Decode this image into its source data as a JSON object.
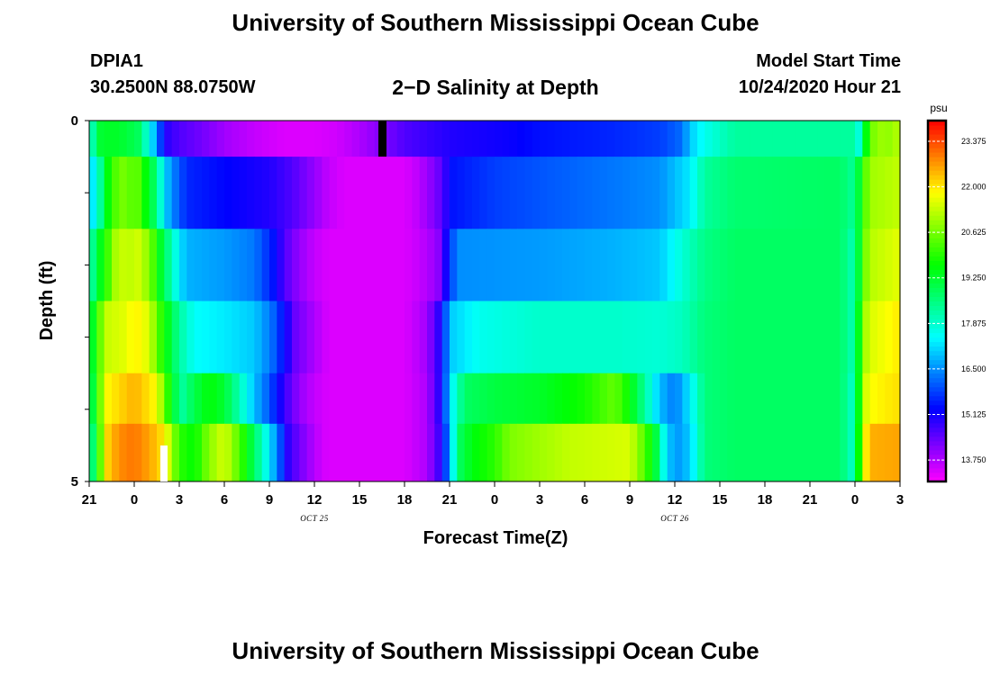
{
  "header": {
    "title": "University of Southern Mississippi Ocean Cube",
    "station_id": "DPIA1",
    "station_coords": "30.2500N 88.0750W",
    "plot_title": "2−D Salinity at Depth",
    "model_label": "Model Start Time",
    "model_time": "10/24/2020 Hour 21"
  },
  "footer": {
    "title": "University of Southern Mississippi Ocean Cube"
  },
  "chart_data": {
    "type": "heatmap",
    "title": "2−D Salinity at Depth",
    "xlabel": "Forecast Time(Z)",
    "ylabel": "Depth (ft)",
    "x_tick_labels": [
      "21",
      "0",
      "3",
      "6",
      "9",
      "12",
      "15",
      "18",
      "21",
      "0",
      "3",
      "6",
      "9",
      "12",
      "15",
      "18",
      "21",
      "0",
      "3"
    ],
    "date_labels": [
      {
        "label": "OCT 25",
        "tick_index": 5
      },
      {
        "label": "OCT 26",
        "tick_index": 13
      }
    ],
    "y_tick_labels": [
      "0",
      "5"
    ],
    "ylim": [
      0,
      5
    ],
    "x_hours_range": [
      0,
      54
    ],
    "colorbar": {
      "unit": "psu",
      "min": 13.1,
      "max": 24.0,
      "tick_values": [
        13.75,
        15.125,
        16.5,
        17.875,
        19.25,
        20.625,
        22.0,
        23.375
      ],
      "tick_labels": [
        "13.750",
        "15.125",
        "16.500",
        "17.875",
        "19.250",
        "20.625",
        "22.000",
        "23.375"
      ]
    },
    "rows": [
      {
        "top": 0,
        "bottom": 0.5,
        "knots": [
          [
            0,
            17.6
          ],
          [
            0.5,
            18.8
          ],
          [
            1,
            19.6
          ],
          [
            1.5,
            19.0
          ],
          [
            2,
            19.6
          ],
          [
            2.5,
            18.8
          ],
          [
            3,
            19.3
          ],
          [
            4,
            17.6
          ],
          [
            4.6,
            16.3
          ],
          [
            5,
            15.0
          ],
          [
            6,
            14.6
          ],
          [
            7.5,
            14.3
          ],
          [
            9,
            13.9
          ],
          [
            11,
            13.6
          ],
          [
            13,
            13.4
          ],
          [
            15,
            13.4
          ],
          [
            16.5,
            13.5
          ],
          [
            18,
            13.8
          ],
          [
            20,
            14.3
          ],
          [
            21,
            14.6
          ],
          [
            24,
            15.0
          ],
          [
            26,
            15.1
          ],
          [
            28,
            15.2
          ],
          [
            30,
            15.4
          ],
          [
            35,
            15.6
          ],
          [
            38,
            15.8
          ],
          [
            39.5,
            16.2
          ],
          [
            40,
            17.0
          ],
          [
            41,
            17.6
          ],
          [
            43,
            18.3
          ],
          [
            51,
            18.3
          ],
          [
            51.2,
            17.6
          ],
          [
            51.6,
            19.1
          ],
          [
            52,
            20.3
          ],
          [
            52.5,
            21.1
          ],
          [
            53,
            20.8
          ],
          [
            54,
            21.2
          ]
        ]
      },
      {
        "top": 0.5,
        "bottom": 1.5,
        "knots": [
          [
            0,
            17.0
          ],
          [
            0.6,
            17.8
          ],
          [
            1,
            19.2
          ],
          [
            1.6,
            20.1
          ],
          [
            2.1,
            20.8
          ],
          [
            2.6,
            20.2
          ],
          [
            3,
            20.8
          ],
          [
            3.6,
            19.8
          ],
          [
            4.5,
            18.6
          ],
          [
            5,
            17.1
          ],
          [
            5.8,
            16.2
          ],
          [
            6.5,
            15.6
          ],
          [
            9,
            15.3
          ],
          [
            12,
            15.0
          ],
          [
            13.5,
            14.6
          ],
          [
            15,
            14.0
          ],
          [
            16,
            13.6
          ],
          [
            17,
            13.4
          ],
          [
            21,
            13.4
          ],
          [
            22,
            13.7
          ],
          [
            23,
            14.2
          ],
          [
            23.6,
            14.6
          ],
          [
            24,
            15.4
          ],
          [
            27,
            15.8
          ],
          [
            30,
            16.0
          ],
          [
            35,
            16.3
          ],
          [
            38,
            16.5
          ],
          [
            40,
            17.3
          ],
          [
            41,
            18.3
          ],
          [
            43,
            18.7
          ],
          [
            50,
            18.8
          ],
          [
            51,
            18.3
          ],
          [
            51.5,
            20.0
          ],
          [
            52,
            21.0
          ],
          [
            54,
            21.3
          ]
        ]
      },
      {
        "top": 1.5,
        "bottom": 2.5,
        "knots": [
          [
            0,
            17.9
          ],
          [
            0.6,
            19.2
          ],
          [
            1.2,
            20.1
          ],
          [
            2,
            21.5
          ],
          [
            2.6,
            21.1
          ],
          [
            3,
            21.6
          ],
          [
            4,
            20.8
          ],
          [
            4.7,
            19.4
          ],
          [
            5.3,
            18.4
          ],
          [
            6,
            17.3
          ],
          [
            6.5,
            16.8
          ],
          [
            9,
            16.6
          ],
          [
            11,
            16.3
          ],
          [
            12.3,
            15.4
          ],
          [
            13,
            14.6
          ],
          [
            14,
            14.0
          ],
          [
            15,
            13.6
          ],
          [
            16,
            13.4
          ],
          [
            21,
            13.4
          ],
          [
            22,
            13.6
          ],
          [
            23.2,
            14.0
          ],
          [
            24,
            15.6
          ],
          [
            24.5,
            16.5
          ],
          [
            30,
            16.6
          ],
          [
            35,
            16.8
          ],
          [
            38,
            17.0
          ],
          [
            39.5,
            17.8
          ],
          [
            41,
            18.5
          ],
          [
            43,
            18.8
          ],
          [
            50,
            18.8
          ],
          [
            51,
            18.0
          ],
          [
            51.5,
            20.3
          ],
          [
            52,
            21.2
          ],
          [
            54,
            21.6
          ]
        ]
      },
      {
        "top": 2.5,
        "bottom": 3.5,
        "knots": [
          [
            0,
            18.8
          ],
          [
            0.6,
            20.1
          ],
          [
            1,
            21.3
          ],
          [
            2.5,
            21.6
          ],
          [
            3,
            22.0
          ],
          [
            4,
            21.5
          ],
          [
            4.6,
            20.3
          ],
          [
            5.3,
            19.3
          ],
          [
            6,
            18.3
          ],
          [
            7,
            17.5
          ],
          [
            9,
            17.3
          ],
          [
            11,
            17.0
          ],
          [
            12.2,
            16.2
          ],
          [
            13,
            15.3
          ],
          [
            13.7,
            14.4
          ],
          [
            15,
            13.8
          ],
          [
            16,
            13.4
          ],
          [
            21,
            13.4
          ],
          [
            22.5,
            13.9
          ],
          [
            23.5,
            15.2
          ],
          [
            24,
            17.0
          ],
          [
            26,
            17.6
          ],
          [
            30,
            17.9
          ],
          [
            35,
            17.9
          ],
          [
            38,
            17.8
          ],
          [
            39.5,
            18.0
          ],
          [
            41,
            18.6
          ],
          [
            43,
            18.8
          ],
          [
            50,
            18.8
          ],
          [
            51,
            18.0
          ],
          [
            51.5,
            20.8
          ],
          [
            52,
            21.5
          ],
          [
            54,
            22.0
          ]
        ]
      },
      {
        "top": 3.5,
        "bottom": 4.2,
        "knots": [
          [
            0,
            18.5
          ],
          [
            0.6,
            20.0
          ],
          [
            1,
            21.8
          ],
          [
            3,
            22.5
          ],
          [
            4.5,
            21.8
          ],
          [
            5,
            20.5
          ],
          [
            5.6,
            19.2
          ],
          [
            6.2,
            18.3
          ],
          [
            7,
            19.0
          ],
          [
            8,
            19.6
          ],
          [
            9,
            19.2
          ],
          [
            10,
            18.1
          ],
          [
            11,
            16.9
          ],
          [
            12,
            16.0
          ],
          [
            13,
            14.8
          ],
          [
            14,
            14.0
          ],
          [
            15,
            13.6
          ],
          [
            16,
            13.4
          ],
          [
            21,
            13.4
          ],
          [
            22.5,
            13.8
          ],
          [
            23.5,
            15.2
          ],
          [
            24,
            17.2
          ],
          [
            25,
            18.8
          ],
          [
            27,
            19.1
          ],
          [
            30,
            19.3
          ],
          [
            33,
            19.8
          ],
          [
            35,
            20.5
          ],
          [
            36,
            19.6
          ],
          [
            37,
            18.3
          ],
          [
            38,
            16.9
          ],
          [
            39,
            16.3
          ],
          [
            40,
            17.3
          ],
          [
            41,
            18.6
          ],
          [
            43,
            18.8
          ],
          [
            50,
            18.8
          ],
          [
            51,
            17.8
          ],
          [
            51.5,
            21.2
          ],
          [
            52,
            21.8
          ],
          [
            54,
            22.1
          ]
        ]
      },
      {
        "top": 4.2,
        "bottom": 5,
        "knots": [
          [
            0,
            18.0
          ],
          [
            0.6,
            19.6
          ],
          [
            1,
            22.0
          ],
          [
            2,
            22.8
          ],
          [
            3,
            23.0
          ],
          [
            4,
            22.6
          ],
          [
            5,
            22.0
          ],
          [
            5.6,
            20.8
          ],
          [
            6,
            20.0
          ],
          [
            7,
            19.6
          ],
          [
            8,
            20.8
          ],
          [
            9,
            21.5
          ],
          [
            10,
            20.3
          ],
          [
            11,
            18.8
          ],
          [
            12,
            17.3
          ],
          [
            12.7,
            16.0
          ],
          [
            13.3,
            14.8
          ],
          [
            14.5,
            14.0
          ],
          [
            15.5,
            13.5
          ],
          [
            16,
            13.4
          ],
          [
            21,
            13.4
          ],
          [
            22.5,
            13.8
          ],
          [
            23.5,
            15.0
          ],
          [
            24,
            16.8
          ],
          [
            24.6,
            18.8
          ],
          [
            25.5,
            19.5
          ],
          [
            27,
            20.0
          ],
          [
            28,
            20.7
          ],
          [
            30,
            21.0
          ],
          [
            32,
            21.3
          ],
          [
            36,
            21.5
          ],
          [
            37,
            20.3
          ],
          [
            37.8,
            19.0
          ],
          [
            38.3,
            17.5
          ],
          [
            39,
            16.5
          ],
          [
            40,
            17.0
          ],
          [
            41,
            18.6
          ],
          [
            43,
            18.8
          ],
          [
            50,
            18.8
          ],
          [
            51,
            17.8
          ],
          [
            51.5,
            21.5
          ],
          [
            52,
            22.5
          ],
          [
            54,
            22.6
          ]
        ]
      }
    ]
  }
}
